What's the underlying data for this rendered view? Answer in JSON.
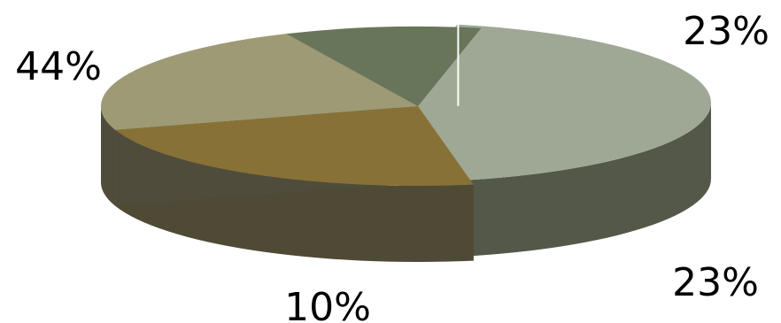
{
  "chart_data": {
    "type": "pie",
    "style": "3d-exploded",
    "slices": [
      {
        "value": 44,
        "label": "44%",
        "color": "#9fa894",
        "side_color": "#535849"
      },
      {
        "value": 23,
        "label": "23%",
        "color": "#877136",
        "side_color": "#4f4a36"
      },
      {
        "value": 23,
        "label": "23%",
        "color": "#9e9a75",
        "side_color": "#4f4c3c"
      },
      {
        "value": 10,
        "label": "10%",
        "color": "#68755a",
        "side_color": "#333a2c"
      }
    ],
    "legend": "none"
  }
}
